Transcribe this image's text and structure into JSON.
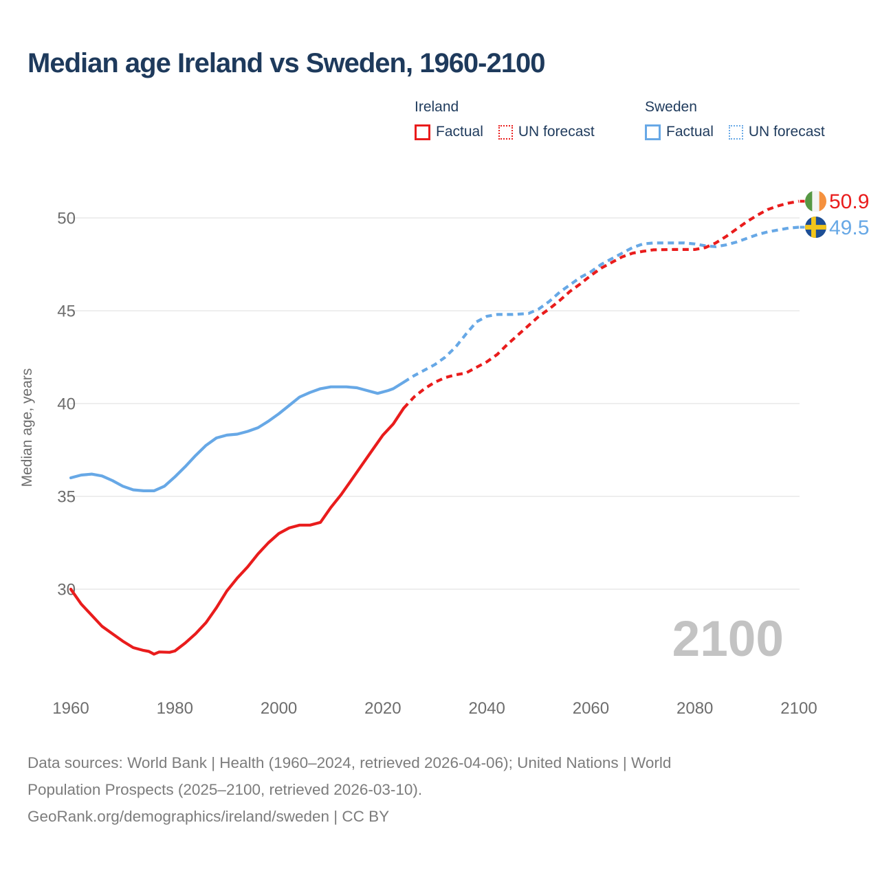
{
  "title": "Median age Ireland vs Sweden, 1960-2100",
  "watermark": "2100",
  "legend": {
    "groups": [
      {
        "country": "Ireland",
        "color": "#e91c1c",
        "items": [
          {
            "label": "Factual",
            "style": "solid"
          },
          {
            "label": "UN forecast",
            "style": "dotted"
          }
        ]
      },
      {
        "country": "Sweden",
        "color": "#67a8e6",
        "items": [
          {
            "label": "Factual",
            "style": "solid"
          },
          {
            "label": "UN forecast",
            "style": "dotted"
          }
        ]
      }
    ]
  },
  "footer": {
    "lines": [
      "Data sources: World Bank | Health (1960–2024, retrieved 2026-04-06); United Nations | World",
      "Population Prospects (2025–2100, retrieved 2026-03-10).",
      "GeoRank.org/demographics/ireland/sweden | CC BY"
    ]
  },
  "chart_data": {
    "type": "line",
    "title": "Median age Ireland vs Sweden, 1960-2100",
    "xlabel": "",
    "ylabel": "Median age, years",
    "xlim": [
      1960,
      2100
    ],
    "ylim": [
      26,
      52
    ],
    "grid": "horizontal",
    "legend_position": "top",
    "yticks": [
      30,
      35,
      40,
      45,
      50
    ],
    "xticks": [
      1960,
      1980,
      2000,
      2020,
      2040,
      2060,
      2080,
      2100
    ],
    "colors": {
      "ireland": "#e91c1c",
      "sweden": "#67a8e6"
    },
    "flag_colors": {
      "ireland": [
        "#569844",
        "#f4f4f4",
        "#f5913e"
      ],
      "sweden": {
        "field": "#1d4e94",
        "cross": "#f2c51b"
      }
    },
    "series": [
      {
        "id": "sweden-factual",
        "name": "Sweden Factual",
        "color": "#67a8e6",
        "dash": "solid",
        "points": [
          [
            1960,
            36.0
          ],
          [
            1962,
            36.15
          ],
          [
            1964,
            36.2
          ],
          [
            1966,
            36.1
          ],
          [
            1968,
            35.85
          ],
          [
            1970,
            35.55
          ],
          [
            1972,
            35.35
          ],
          [
            1974,
            35.3
          ],
          [
            1976,
            35.3
          ],
          [
            1978,
            35.55
          ],
          [
            1980,
            36.05
          ],
          [
            1982,
            36.6
          ],
          [
            1984,
            37.2
          ],
          [
            1986,
            37.75
          ],
          [
            1988,
            38.15
          ],
          [
            1990,
            38.3
          ],
          [
            1992,
            38.35
          ],
          [
            1994,
            38.5
          ],
          [
            1996,
            38.7
          ],
          [
            1998,
            39.05
          ],
          [
            2000,
            39.45
          ],
          [
            2002,
            39.9
          ],
          [
            2004,
            40.35
          ],
          [
            2006,
            40.6
          ],
          [
            2008,
            40.8
          ],
          [
            2010,
            40.9
          ],
          [
            2013,
            40.9
          ],
          [
            2015,
            40.85
          ],
          [
            2017,
            40.7
          ],
          [
            2019,
            40.55
          ],
          [
            2021,
            40.7
          ],
          [
            2022,
            40.8
          ],
          [
            2024,
            41.15
          ]
        ]
      },
      {
        "id": "sweden-forecast",
        "name": "Sweden UN forecast",
        "color": "#67a8e6",
        "dash": "dashed",
        "end_label": "49.5",
        "flag": "sweden",
        "points": [
          [
            2024,
            41.15
          ],
          [
            2026,
            41.5
          ],
          [
            2028,
            41.8
          ],
          [
            2030,
            42.1
          ],
          [
            2032,
            42.5
          ],
          [
            2034,
            43.05
          ],
          [
            2036,
            43.75
          ],
          [
            2038,
            44.4
          ],
          [
            2040,
            44.7
          ],
          [
            2042,
            44.8
          ],
          [
            2045,
            44.8
          ],
          [
            2048,
            44.85
          ],
          [
            2050,
            45.1
          ],
          [
            2052,
            45.5
          ],
          [
            2054,
            46.0
          ],
          [
            2056,
            46.4
          ],
          [
            2058,
            46.8
          ],
          [
            2060,
            47.1
          ],
          [
            2062,
            47.5
          ],
          [
            2064,
            47.8
          ],
          [
            2066,
            48.1
          ],
          [
            2068,
            48.4
          ],
          [
            2070,
            48.6
          ],
          [
            2072,
            48.65
          ],
          [
            2076,
            48.65
          ],
          [
            2078,
            48.65
          ],
          [
            2080,
            48.6
          ],
          [
            2082,
            48.5
          ],
          [
            2084,
            48.45
          ],
          [
            2086,
            48.55
          ],
          [
            2088,
            48.7
          ],
          [
            2090,
            48.9
          ],
          [
            2092,
            49.1
          ],
          [
            2094,
            49.25
          ],
          [
            2096,
            49.35
          ],
          [
            2098,
            49.45
          ],
          [
            2100,
            49.5
          ]
        ]
      },
      {
        "id": "ireland-factual",
        "name": "Ireland Factual",
        "color": "#e91c1c",
        "dash": "solid",
        "points": [
          [
            1960,
            30.0
          ],
          [
            1962,
            29.2
          ],
          [
            1964,
            28.6
          ],
          [
            1966,
            28.0
          ],
          [
            1968,
            27.6
          ],
          [
            1970,
            27.2
          ],
          [
            1972,
            26.85
          ],
          [
            1974,
            26.7
          ],
          [
            1975,
            26.65
          ],
          [
            1976,
            26.5
          ],
          [
            1977,
            26.62
          ],
          [
            1979,
            26.6
          ],
          [
            1980,
            26.67
          ],
          [
            1982,
            27.1
          ],
          [
            1984,
            27.6
          ],
          [
            1986,
            28.2
          ],
          [
            1988,
            29.0
          ],
          [
            1990,
            29.9
          ],
          [
            1992,
            30.6
          ],
          [
            1994,
            31.2
          ],
          [
            1996,
            31.9
          ],
          [
            1998,
            32.5
          ],
          [
            2000,
            33.0
          ],
          [
            2002,
            33.3
          ],
          [
            2004,
            33.45
          ],
          [
            2006,
            33.45
          ],
          [
            2008,
            33.6
          ],
          [
            2010,
            34.4
          ],
          [
            2012,
            35.1
          ],
          [
            2014,
            35.9
          ],
          [
            2016,
            36.7
          ],
          [
            2018,
            37.5
          ],
          [
            2020,
            38.3
          ],
          [
            2022,
            38.9
          ],
          [
            2024,
            39.75
          ]
        ]
      },
      {
        "id": "ireland-forecast",
        "name": "Ireland UN forecast",
        "color": "#e91c1c",
        "dash": "dashed",
        "end_label": "50.9",
        "flag": "ireland",
        "points": [
          [
            2024,
            39.75
          ],
          [
            2026,
            40.35
          ],
          [
            2028,
            40.8
          ],
          [
            2030,
            41.15
          ],
          [
            2032,
            41.4
          ],
          [
            2034,
            41.55
          ],
          [
            2036,
            41.65
          ],
          [
            2038,
            41.95
          ],
          [
            2040,
            42.25
          ],
          [
            2042,
            42.65
          ],
          [
            2044,
            43.2
          ],
          [
            2046,
            43.7
          ],
          [
            2048,
            44.2
          ],
          [
            2050,
            44.7
          ],
          [
            2052,
            45.1
          ],
          [
            2054,
            45.55
          ],
          [
            2056,
            46.05
          ],
          [
            2058,
            46.45
          ],
          [
            2060,
            46.9
          ],
          [
            2062,
            47.3
          ],
          [
            2064,
            47.6
          ],
          [
            2066,
            47.9
          ],
          [
            2068,
            48.1
          ],
          [
            2070,
            48.2
          ],
          [
            2072,
            48.28
          ],
          [
            2076,
            48.3
          ],
          [
            2080,
            48.3
          ],
          [
            2082,
            48.4
          ],
          [
            2084,
            48.65
          ],
          [
            2086,
            49.0
          ],
          [
            2088,
            49.4
          ],
          [
            2090,
            49.8
          ],
          [
            2092,
            50.15
          ],
          [
            2094,
            50.45
          ],
          [
            2096,
            50.65
          ],
          [
            2098,
            50.8
          ],
          [
            2100,
            50.9
          ]
        ]
      }
    ]
  }
}
